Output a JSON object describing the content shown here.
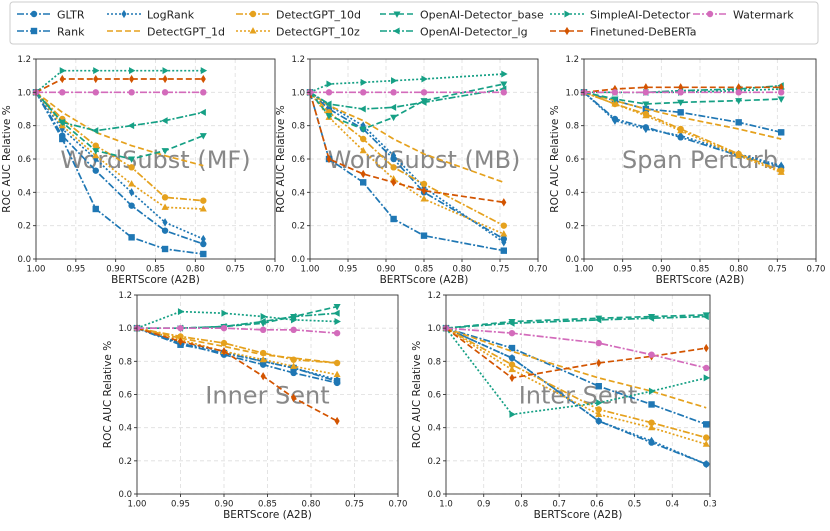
{
  "legend": {
    "entries": [
      {
        "key": "gltr",
        "label": "GLTR"
      },
      {
        "key": "rank",
        "label": "Rank"
      },
      {
        "key": "logrank",
        "label": "LogRank"
      },
      {
        "key": "dgpt1d",
        "label": "DetectGPT_1d"
      },
      {
        "key": "dgpt10d",
        "label": "DetectGPT_10d"
      },
      {
        "key": "dgpt10z",
        "label": "DetectGPT_10z"
      },
      {
        "key": "oai_base",
        "label": "OpenAI-Detector_base"
      },
      {
        "key": "oai_lg",
        "label": "OpenAI-Detector_lg"
      },
      {
        "key": "simpleai",
        "label": "SimpleAI-Detector"
      },
      {
        "key": "deberta",
        "label": "Finetuned-DeBERTa"
      },
      {
        "key": "watermark",
        "label": "Watermark"
      }
    ]
  },
  "styles": {
    "gltr": {
      "color": "#1f77b4",
      "dash": "7,2,2,2",
      "marker": "circle"
    },
    "rank": {
      "color": "#1f77b4",
      "dash": "7,2,2,2",
      "marker": "square"
    },
    "logrank": {
      "color": "#1f77b4",
      "dash": "2,2",
      "marker": "diamond"
    },
    "dgpt1d": {
      "color": "#e5a11d",
      "dash": "6,3",
      "marker": "none"
    },
    "dgpt10d": {
      "color": "#e5a11d",
      "dash": "7,2,2,2",
      "marker": "circle"
    },
    "dgpt10z": {
      "color": "#e5a11d",
      "dash": "2,2",
      "marker": "triangle"
    },
    "oai_base": {
      "color": "#16a085",
      "dash": "6,3",
      "marker": "triangle-down"
    },
    "oai_lg": {
      "color": "#16a085",
      "dash": "7,2,2,2",
      "marker": "triangle-left"
    },
    "simpleai": {
      "color": "#16a085",
      "dash": "2,2",
      "marker": "triangle-right"
    },
    "deberta": {
      "color": "#d35400",
      "dash": "6,3",
      "marker": "diamond"
    },
    "watermark": {
      "color": "#d36bbb",
      "dash": "7,2,2,2",
      "marker": "circle"
    }
  },
  "chart_data": [
    {
      "type": "line",
      "panel": "wordsubst_mf",
      "title": "WordSubst (MF)",
      "xlabel": "BERTScore (A2B)",
      "ylabel": "ROC AUC Relative %",
      "xlim": [
        1.0,
        0.7
      ],
      "ylim": [
        0.0,
        1.2
      ],
      "xticks": [
        "1.00",
        "0.95",
        "0.90",
        "0.85",
        "0.80",
        "0.75",
        "0.70"
      ],
      "xtick_values": [
        1.0,
        0.95,
        0.9,
        0.85,
        0.8,
        0.75,
        0.7
      ],
      "yticks": [
        "0.0",
        "0.2",
        "0.4",
        "0.6",
        "0.8",
        "1.0",
        "1.2"
      ],
      "ytick_values": [
        0.0,
        0.2,
        0.4,
        0.6,
        0.8,
        1.0,
        1.2
      ],
      "x": [
        1.0,
        0.967,
        0.925,
        0.88,
        0.838,
        0.79
      ],
      "series": [
        {
          "name": "GLTR",
          "key": "gltr",
          "values": [
            1.0,
            0.74,
            0.53,
            0.32,
            0.17,
            0.09
          ]
        },
        {
          "name": "Rank",
          "key": "rank",
          "values": [
            1.0,
            0.72,
            0.3,
            0.13,
            0.06,
            0.03
          ]
        },
        {
          "name": "LogRank",
          "key": "logrank",
          "values": [
            1.0,
            0.78,
            0.6,
            0.4,
            0.22,
            0.12
          ]
        },
        {
          "name": "DetectGPT_1d",
          "key": "dgpt1d",
          "values": [
            1.0,
            0.88,
            0.76,
            0.68,
            0.62,
            0.56
          ]
        },
        {
          "name": "DetectGPT_10d",
          "key": "dgpt10d",
          "values": [
            1.0,
            0.84,
            0.68,
            0.55,
            0.37,
            0.35
          ]
        },
        {
          "name": "DetectGPT_10z",
          "key": "dgpt10z",
          "values": [
            1.0,
            0.8,
            0.62,
            0.45,
            0.31,
            0.3
          ]
        },
        {
          "name": "OpenAI-Detector_base",
          "key": "oai_base",
          "values": [
            1.0,
            0.82,
            0.65,
            0.6,
            0.65,
            0.74
          ]
        },
        {
          "name": "OpenAI-Detector_lg",
          "key": "oai_lg",
          "values": [
            1.0,
            0.82,
            0.77,
            0.8,
            0.83,
            0.88
          ]
        },
        {
          "name": "SimpleAI-Detector",
          "key": "simpleai",
          "values": [
            1.0,
            1.13,
            1.13,
            1.13,
            1.13,
            1.13
          ]
        },
        {
          "name": "Finetuned-DeBERTa",
          "key": "deberta",
          "values": [
            1.0,
            1.08,
            1.08,
            1.08,
            1.08,
            1.08
          ]
        },
        {
          "name": "Watermark",
          "key": "watermark",
          "values": [
            1.0,
            1.0,
            1.0,
            1.0,
            1.0,
            1.0
          ]
        }
      ]
    },
    {
      "type": "line",
      "panel": "wordsubst_mb",
      "title": "WordSubst (MB)",
      "xlabel": "BERTScore (A2B)",
      "ylabel": "ROC AUC Relative %",
      "xlim": [
        1.0,
        0.7
      ],
      "ylim": [
        0.0,
        1.2
      ],
      "xticks": [
        "1.00",
        "0.95",
        "0.90",
        "0.85",
        "0.80",
        "0.75",
        "0.70"
      ],
      "xtick_values": [
        1.0,
        0.95,
        0.9,
        0.85,
        0.8,
        0.75,
        0.7
      ],
      "yticks": [
        "0.0",
        "0.2",
        "0.4",
        "0.6",
        "0.8",
        "1.0",
        "1.2"
      ],
      "ytick_values": [
        0.0,
        0.2,
        0.4,
        0.6,
        0.8,
        1.0,
        1.2
      ],
      "x": [
        1.0,
        0.975,
        0.93,
        0.89,
        0.85,
        0.745
      ],
      "series": [
        {
          "name": "GLTR",
          "key": "gltr",
          "values": [
            1.0,
            0.9,
            0.78,
            0.6,
            0.4,
            0.12
          ]
        },
        {
          "name": "Rank",
          "key": "rank",
          "values": [
            1.0,
            0.6,
            0.46,
            0.24,
            0.14,
            0.05
          ]
        },
        {
          "name": "LogRank",
          "key": "logrank",
          "values": [
            1.0,
            0.92,
            0.8,
            0.62,
            0.43,
            0.1
          ]
        },
        {
          "name": "DetectGPT_1d",
          "key": "dgpt1d",
          "values": [
            1.0,
            0.92,
            0.83,
            0.72,
            0.63,
            0.46
          ]
        },
        {
          "name": "DetectGPT_10d",
          "key": "dgpt10d",
          "values": [
            1.0,
            0.88,
            0.72,
            0.55,
            0.45,
            0.2
          ]
        },
        {
          "name": "DetectGPT_10z",
          "key": "dgpt10z",
          "values": [
            1.0,
            0.85,
            0.65,
            0.48,
            0.36,
            0.15
          ]
        },
        {
          "name": "OpenAI-Detector_base",
          "key": "oai_base",
          "values": [
            1.0,
            0.86,
            0.78,
            0.85,
            0.95,
            1.05
          ]
        },
        {
          "name": "OpenAI-Detector_lg",
          "key": "oai_lg",
          "values": [
            1.0,
            0.93,
            0.9,
            0.91,
            0.94,
            1.02
          ]
        },
        {
          "name": "SimpleAI-Detector",
          "key": "simpleai",
          "values": [
            1.0,
            1.05,
            1.06,
            1.07,
            1.08,
            1.11
          ]
        },
        {
          "name": "Finetuned-DeBERTa",
          "key": "deberta",
          "values": [
            1.0,
            0.6,
            0.51,
            0.46,
            0.41,
            0.34
          ]
        },
        {
          "name": "Watermark",
          "key": "watermark",
          "values": [
            1.0,
            1.0,
            1.0,
            1.0,
            1.0,
            1.0
          ]
        }
      ]
    },
    {
      "type": "line",
      "panel": "span_perturb",
      "title": "Span Perturb",
      "xlabel": "BERTScore (A2B)",
      "ylabel": "ROC AUC Relative %",
      "xlim": [
        1.0,
        0.7
      ],
      "ylim": [
        0.0,
        1.2
      ],
      "xticks": [
        "1.00",
        "0.95",
        "0.90",
        "0.85",
        "0.80",
        "0.75",
        "0.70"
      ],
      "xtick_values": [
        1.0,
        0.95,
        0.9,
        0.85,
        0.8,
        0.75,
        0.7
      ],
      "yticks": [
        "0.0",
        "0.2",
        "0.4",
        "0.6",
        "0.8",
        "1.0",
        "1.2"
      ],
      "ytick_values": [
        0.0,
        0.2,
        0.4,
        0.6,
        0.8,
        1.0,
        1.2
      ],
      "x": [
        1.0,
        0.96,
        0.92,
        0.875,
        0.8,
        0.745
      ],
      "series": [
        {
          "name": "GLTR",
          "key": "gltr",
          "values": [
            1.0,
            0.84,
            0.79,
            0.73,
            0.62,
            0.55
          ]
        },
        {
          "name": "Rank",
          "key": "rank",
          "values": [
            1.0,
            0.95,
            0.9,
            0.88,
            0.82,
            0.76
          ]
        },
        {
          "name": "LogRank",
          "key": "logrank",
          "values": [
            1.0,
            0.83,
            0.78,
            0.74,
            0.63,
            0.56
          ]
        },
        {
          "name": "DetectGPT_1d",
          "key": "dgpt1d",
          "values": [
            1.0,
            0.95,
            0.9,
            0.85,
            0.78,
            0.72
          ]
        },
        {
          "name": "DetectGPT_10d",
          "key": "dgpt10d",
          "values": [
            1.0,
            0.93,
            0.87,
            0.78,
            0.63,
            0.53
          ]
        },
        {
          "name": "DetectGPT_10z",
          "key": "dgpt10z",
          "values": [
            1.0,
            0.93,
            0.86,
            0.77,
            0.62,
            0.52
          ]
        },
        {
          "name": "OpenAI-Detector_base",
          "key": "oai_base",
          "values": [
            1.0,
            0.96,
            0.93,
            0.94,
            0.95,
            0.96
          ]
        },
        {
          "name": "OpenAI-Detector_lg",
          "key": "oai_lg",
          "values": [
            1.0,
            1.0,
            1.0,
            1.01,
            1.02,
            1.04
          ]
        },
        {
          "name": "SimpleAI-Detector",
          "key": "simpleai",
          "values": [
            1.0,
            1.0,
            1.0,
            1.0,
            1.01,
            1.02
          ]
        },
        {
          "name": "Finetuned-DeBERTa",
          "key": "deberta",
          "values": [
            1.0,
            1.02,
            1.03,
            1.03,
            1.03,
            1.03
          ]
        },
        {
          "name": "Watermark",
          "key": "watermark",
          "values": [
            1.0,
            1.0,
            1.0,
            1.0,
            1.0,
            1.0
          ]
        }
      ]
    },
    {
      "type": "line",
      "panel": "inner_sent",
      "title": "Inner Sent",
      "xlabel": "BERTScore (A2B)",
      "ylabel": "ROC AUC Relative %",
      "xlim": [
        1.0,
        0.7
      ],
      "ylim": [
        0.0,
        1.2
      ],
      "xticks": [
        "1.00",
        "0.95",
        "0.90",
        "0.85",
        "0.80",
        "0.75",
        "0.70"
      ],
      "xtick_values": [
        1.0,
        0.95,
        0.9,
        0.85,
        0.8,
        0.75,
        0.7
      ],
      "yticks": [
        "0.0",
        "0.2",
        "0.4",
        "0.6",
        "0.8",
        "1.0",
        "1.2"
      ],
      "ytick_values": [
        0.0,
        0.2,
        0.4,
        0.6,
        0.8,
        1.0,
        1.2
      ],
      "x": [
        1.0,
        0.95,
        0.9,
        0.855,
        0.82,
        0.77
      ],
      "series": [
        {
          "name": "GLTR",
          "key": "gltr",
          "values": [
            1.0,
            0.91,
            0.84,
            0.78,
            0.73,
            0.67
          ]
        },
        {
          "name": "Rank",
          "key": "rank",
          "values": [
            1.0,
            0.9,
            0.85,
            0.8,
            0.76,
            0.68
          ]
        },
        {
          "name": "LogRank",
          "key": "logrank",
          "values": [
            1.0,
            0.91,
            0.86,
            0.8,
            0.76,
            0.69
          ]
        },
        {
          "name": "DetectGPT_1d",
          "key": "dgpt1d",
          "values": [
            1.0,
            0.94,
            0.89,
            0.84,
            0.82,
            0.79
          ]
        },
        {
          "name": "DetectGPT_10d",
          "key": "dgpt10d",
          "values": [
            1.0,
            0.95,
            0.91,
            0.85,
            0.81,
            0.79
          ]
        },
        {
          "name": "DetectGPT_10z",
          "key": "dgpt10z",
          "values": [
            1.0,
            0.93,
            0.86,
            0.81,
            0.77,
            0.72
          ]
        },
        {
          "name": "OpenAI-Detector_base",
          "key": "oai_base",
          "values": [
            1.0,
            1.0,
            1.01,
            1.03,
            1.07,
            1.13
          ]
        },
        {
          "name": "OpenAI-Detector_lg",
          "key": "oai_lg",
          "values": [
            1.0,
            1.0,
            1.01,
            1.04,
            1.07,
            1.09
          ]
        },
        {
          "name": "SimpleAI-Detector",
          "key": "simpleai",
          "values": [
            1.0,
            1.1,
            1.09,
            1.07,
            1.05,
            1.04
          ]
        },
        {
          "name": "Finetuned-DeBERTa",
          "key": "deberta",
          "values": [
            1.0,
            0.92,
            0.86,
            0.71,
            0.58,
            0.44
          ]
        },
        {
          "name": "Watermark",
          "key": "watermark",
          "values": [
            1.0,
            1.0,
            1.0,
            0.99,
            0.99,
            0.97
          ]
        }
      ]
    },
    {
      "type": "line",
      "panel": "inter_sent",
      "title": "Inter Sent",
      "xlabel": "BERTScore (A2B)",
      "ylabel": "ROC AUC Relative %",
      "xlim": [
        1.0,
        0.3
      ],
      "ylim": [
        0.0,
        1.2
      ],
      "xticks": [
        "1.0",
        "0.9",
        "0.8",
        "0.7",
        "0.6",
        "0.5",
        "0.4",
        "0.3"
      ],
      "xtick_values": [
        1.0,
        0.9,
        0.8,
        0.7,
        0.6,
        0.5,
        0.4,
        0.3
      ],
      "yticks": [
        "0.0",
        "0.2",
        "0.4",
        "0.6",
        "0.8",
        "1.0",
        "1.2"
      ],
      "ytick_values": [
        0.0,
        0.2,
        0.4,
        0.6,
        0.8,
        1.0,
        1.2
      ],
      "x": [
        1.0,
        0.825,
        0.595,
        0.455,
        0.31
      ],
      "series": [
        {
          "name": "GLTR",
          "key": "gltr",
          "values": [
            1.0,
            0.82,
            0.44,
            0.31,
            0.18
          ]
        },
        {
          "name": "Rank",
          "key": "rank",
          "values": [
            1.0,
            0.88,
            0.65,
            0.54,
            0.42
          ]
        },
        {
          "name": "LogRank",
          "key": "logrank",
          "values": [
            1.0,
            0.82,
            0.44,
            0.32,
            0.18
          ]
        },
        {
          "name": "DetectGPT_1d",
          "key": "dgpt1d",
          "values": [
            1.0,
            0.86,
            0.7,
            0.62,
            0.52
          ]
        },
        {
          "name": "DetectGPT_10d",
          "key": "dgpt10d",
          "values": [
            1.0,
            0.78,
            0.51,
            0.43,
            0.34
          ]
        },
        {
          "name": "DetectGPT_10z",
          "key": "dgpt10z",
          "values": [
            1.0,
            0.75,
            0.48,
            0.4,
            0.3
          ]
        },
        {
          "name": "OpenAI-Detector_base",
          "key": "oai_base",
          "values": [
            1.0,
            1.04,
            1.06,
            1.07,
            1.08
          ]
        },
        {
          "name": "OpenAI-Detector_lg",
          "key": "oai_lg",
          "values": [
            1.0,
            1.03,
            1.05,
            1.06,
            1.07
          ]
        },
        {
          "name": "SimpleAI-Detector",
          "key": "simpleai",
          "values": [
            1.0,
            0.48,
            0.55,
            0.62,
            0.7
          ]
        },
        {
          "name": "Finetuned-DeBERTa",
          "key": "deberta",
          "values": [
            1.0,
            0.7,
            0.79,
            0.83,
            0.88
          ]
        },
        {
          "name": "Watermark",
          "key": "watermark",
          "values": [
            1.0,
            0.97,
            0.91,
            0.84,
            0.76
          ]
        }
      ]
    }
  ]
}
